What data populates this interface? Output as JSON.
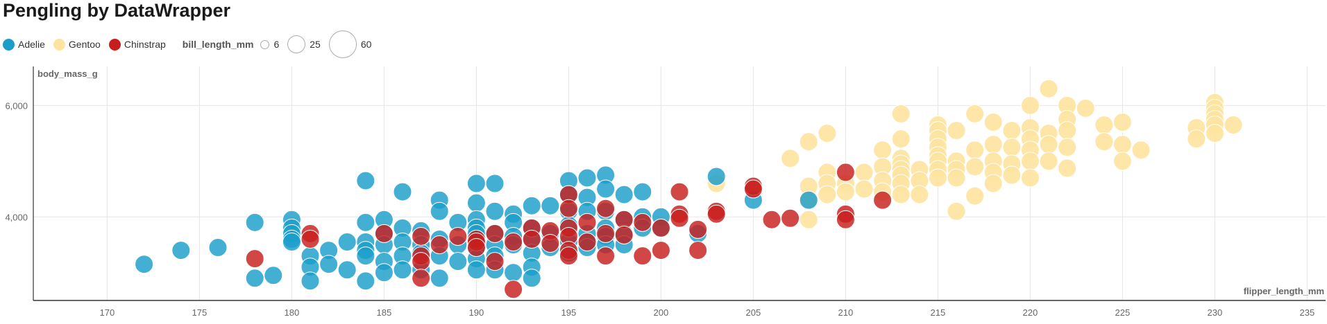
{
  "title": "Pengling by DataWrapper",
  "legend": {
    "species": [
      {
        "name": "Adelie",
        "color": "#1a9ec9"
      },
      {
        "name": "Gentoo",
        "color": "#fde4a0"
      },
      {
        "name": "Chinstrap",
        "color": "#c71e1d"
      }
    ],
    "size_title": "bill_length_mm",
    "sizes": [
      {
        "label": "6",
        "value": 6
      },
      {
        "label": "25",
        "value": 25
      },
      {
        "label": "60",
        "value": 60
      }
    ]
  },
  "chart_data": {
    "type": "scatter",
    "title": "Pengling by DataWrapper",
    "xlabel": "flipper_length_mm",
    "ylabel": "body_mass_g",
    "xlim": [
      166,
      236
    ],
    "ylim": [
      2500,
      6700
    ],
    "x_ticks": [
      170,
      175,
      180,
      185,
      190,
      195,
      200,
      205,
      210,
      215,
      220,
      225,
      230,
      235
    ],
    "y_ticks": [
      {
        "value": 4000,
        "label": "4,000"
      },
      {
        "value": 6000,
        "label": "6,000"
      }
    ],
    "size_variable": "bill_length_mm",
    "grid": true,
    "legend_position": "top-left",
    "series": [
      {
        "name": "Adelie",
        "color": "#1a9ec9",
        "points": [
          [
            172,
            3150
          ],
          [
            174,
            3400
          ],
          [
            176,
            3450
          ],
          [
            178,
            3900
          ],
          [
            178,
            2900
          ],
          [
            179,
            2950
          ],
          [
            180,
            3950
          ],
          [
            180,
            3800
          ],
          [
            180,
            3700
          ],
          [
            180,
            3600
          ],
          [
            180,
            3550
          ],
          [
            181,
            3300
          ],
          [
            181,
            3100
          ],
          [
            181,
            2850
          ],
          [
            182,
            3400
          ],
          [
            182,
            3150
          ],
          [
            183,
            3550
          ],
          [
            183,
            3050
          ],
          [
            184,
            4650
          ],
          [
            184,
            3900
          ],
          [
            184,
            3550
          ],
          [
            184,
            3400
          ],
          [
            184,
            3300
          ],
          [
            184,
            2850
          ],
          [
            185,
            3950
          ],
          [
            185,
            3700
          ],
          [
            185,
            3500
          ],
          [
            185,
            3200
          ],
          [
            185,
            3000
          ],
          [
            186,
            4450
          ],
          [
            186,
            3800
          ],
          [
            186,
            3550
          ],
          [
            186,
            3300
          ],
          [
            186,
            3050
          ],
          [
            187,
            3750
          ],
          [
            187,
            3500
          ],
          [
            187,
            3350
          ],
          [
            187,
            3050
          ],
          [
            188,
            4300
          ],
          [
            188,
            4100
          ],
          [
            188,
            3600
          ],
          [
            188,
            3300
          ],
          [
            188,
            2900
          ],
          [
            189,
            3900
          ],
          [
            189,
            3500
          ],
          [
            189,
            3200
          ],
          [
            190,
            4600
          ],
          [
            190,
            4250
          ],
          [
            190,
            3950
          ],
          [
            190,
            3800
          ],
          [
            190,
            3700
          ],
          [
            190,
            3600
          ],
          [
            190,
            3450
          ],
          [
            190,
            3250
          ],
          [
            190,
            3050
          ],
          [
            191,
            4600
          ],
          [
            191,
            4100
          ],
          [
            191,
            3700
          ],
          [
            191,
            3500
          ],
          [
            191,
            3300
          ],
          [
            191,
            3050
          ],
          [
            192,
            4050
          ],
          [
            192,
            3900
          ],
          [
            192,
            3650
          ],
          [
            192,
            3500
          ],
          [
            192,
            3000
          ],
          [
            193,
            4200
          ],
          [
            193,
            3800
          ],
          [
            193,
            3600
          ],
          [
            193,
            3350
          ],
          [
            193,
            3100
          ],
          [
            193,
            2900
          ],
          [
            194,
            4200
          ],
          [
            194,
            3700
          ],
          [
            194,
            3450
          ],
          [
            195,
            4650
          ],
          [
            195,
            4400
          ],
          [
            195,
            4100
          ],
          [
            195,
            3850
          ],
          [
            195,
            3550
          ],
          [
            195,
            3350
          ],
          [
            196,
            4700
          ],
          [
            196,
            4350
          ],
          [
            196,
            4100
          ],
          [
            196,
            3700
          ],
          [
            196,
            3550
          ],
          [
            196,
            3450
          ],
          [
            197,
            4750
          ],
          [
            197,
            4500
          ],
          [
            197,
            4100
          ],
          [
            197,
            3800
          ],
          [
            197,
            3650
          ],
          [
            197,
            3500
          ],
          [
            198,
            4400
          ],
          [
            198,
            3950
          ],
          [
            198,
            3700
          ],
          [
            198,
            3500
          ],
          [
            199,
            4450
          ],
          [
            199,
            4000
          ],
          [
            199,
            3800
          ],
          [
            200,
            4000
          ],
          [
            200,
            3800
          ],
          [
            202,
            3700
          ],
          [
            203,
            4725
          ],
          [
            205,
            4300
          ],
          [
            208,
            4300
          ]
        ]
      },
      {
        "name": "Gentoo",
        "color": "#fde4a0",
        "points": [
          [
            203,
            4600
          ],
          [
            207,
            5050
          ],
          [
            208,
            5350
          ],
          [
            208,
            4550
          ],
          [
            208,
            4300
          ],
          [
            208,
            3950
          ],
          [
            209,
            5500
          ],
          [
            209,
            4800
          ],
          [
            209,
            4600
          ],
          [
            209,
            4400
          ],
          [
            210,
            4600
          ],
          [
            210,
            4450
          ],
          [
            211,
            4800
          ],
          [
            211,
            4500
          ],
          [
            212,
            5200
          ],
          [
            212,
            4900
          ],
          [
            212,
            4650
          ],
          [
            212,
            4450
          ],
          [
            213,
            5850
          ],
          [
            213,
            5400
          ],
          [
            213,
            5050
          ],
          [
            213,
            4950
          ],
          [
            213,
            4850
          ],
          [
            213,
            4750
          ],
          [
            213,
            4600
          ],
          [
            213,
            4400
          ],
          [
            214,
            4850
          ],
          [
            214,
            4650
          ],
          [
            214,
            4400
          ],
          [
            215,
            5650
          ],
          [
            215,
            5550
          ],
          [
            215,
            5400
          ],
          [
            215,
            5250
          ],
          [
            215,
            5100
          ],
          [
            215,
            5000
          ],
          [
            215,
            4850
          ],
          [
            215,
            4700
          ],
          [
            216,
            5550
          ],
          [
            216,
            5000
          ],
          [
            216,
            4850
          ],
          [
            216,
            4700
          ],
          [
            216,
            4100
          ],
          [
            217,
            5850
          ],
          [
            217,
            5200
          ],
          [
            217,
            4900
          ],
          [
            217,
            4375
          ],
          [
            218,
            5700
          ],
          [
            218,
            5300
          ],
          [
            218,
            5000
          ],
          [
            218,
            4800
          ],
          [
            218,
            4600
          ],
          [
            219,
            5550
          ],
          [
            219,
            5250
          ],
          [
            219,
            4950
          ],
          [
            219,
            4750
          ],
          [
            220,
            6000
          ],
          [
            220,
            5600
          ],
          [
            220,
            5400
          ],
          [
            220,
            5200
          ],
          [
            220,
            5000
          ],
          [
            220,
            4700
          ],
          [
            221,
            6300
          ],
          [
            221,
            5500
          ],
          [
            221,
            5300
          ],
          [
            221,
            5000
          ],
          [
            222,
            6000
          ],
          [
            222,
            5750
          ],
          [
            222,
            5550
          ],
          [
            222,
            5250
          ],
          [
            222,
            4875
          ],
          [
            223,
            5950
          ],
          [
            224,
            5650
          ],
          [
            224,
            5350
          ],
          [
            225,
            5700
          ],
          [
            225,
            5300
          ],
          [
            225,
            5000
          ],
          [
            226,
            5200
          ],
          [
            229,
            5600
          ],
          [
            229,
            5400
          ],
          [
            230,
            6050
          ],
          [
            230,
            5950
          ],
          [
            230,
            5850
          ],
          [
            230,
            5750
          ],
          [
            230,
            5650
          ],
          [
            230,
            5500
          ],
          [
            231,
            5650
          ]
        ]
      },
      {
        "name": "Chinstrap",
        "color": "#c71e1d",
        "points": [
          [
            178,
            3250
          ],
          [
            181,
            3700
          ],
          [
            181,
            3600
          ],
          [
            185,
            3700
          ],
          [
            187,
            3650
          ],
          [
            187,
            3300
          ],
          [
            187,
            3200
          ],
          [
            187,
            2900
          ],
          [
            188,
            3500
          ],
          [
            189,
            3650
          ],
          [
            190,
            3600
          ],
          [
            190,
            3550
          ],
          [
            190,
            3450
          ],
          [
            191,
            3700
          ],
          [
            191,
            3200
          ],
          [
            192,
            3550
          ],
          [
            192,
            2700
          ],
          [
            193,
            3800
          ],
          [
            193,
            3600
          ],
          [
            194,
            3750
          ],
          [
            194,
            3525
          ],
          [
            195,
            4400
          ],
          [
            195,
            4150
          ],
          [
            195,
            3800
          ],
          [
            195,
            3650
          ],
          [
            195,
            3400
          ],
          [
            195,
            3300
          ],
          [
            196,
            3900
          ],
          [
            196,
            3550
          ],
          [
            197,
            4150
          ],
          [
            197,
            3700
          ],
          [
            197,
            3300
          ],
          [
            198,
            3950
          ],
          [
            198,
            3675
          ],
          [
            199,
            3900
          ],
          [
            199,
            3300
          ],
          [
            200,
            3800
          ],
          [
            200,
            3400
          ],
          [
            201,
            4450
          ],
          [
            201,
            4050
          ],
          [
            201,
            3975
          ],
          [
            202,
            3775
          ],
          [
            202,
            3400
          ],
          [
            203,
            4100
          ],
          [
            203,
            4050
          ],
          [
            205,
            4550
          ],
          [
            205,
            4500
          ],
          [
            206,
            3950
          ],
          [
            207,
            3975
          ],
          [
            210,
            4800
          ],
          [
            210,
            4050
          ],
          [
            210,
            3950
          ],
          [
            212,
            4300
          ]
        ]
      }
    ]
  }
}
